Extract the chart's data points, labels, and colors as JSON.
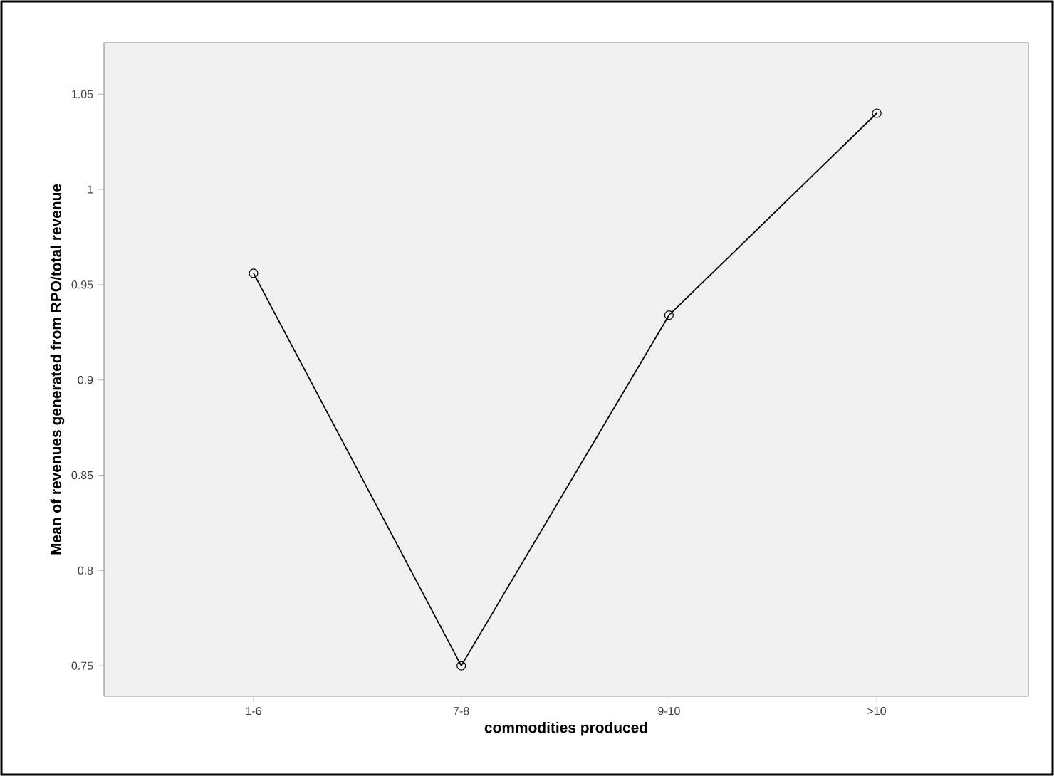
{
  "chart_data": {
    "type": "line",
    "xlabel": "commodities produced",
    "ylabel": "Mean of revenues generated from RPO/total revenue",
    "categories": [
      "1-6",
      "7-8",
      "9-10",
      ">10"
    ],
    "series": [
      {
        "color": "#000000",
        "values": [
          0.956,
          0.75,
          0.934,
          1.04
        ]
      }
    ],
    "ylim": [
      0.734,
      1.077
    ],
    "yticks": [
      0.75,
      0.8,
      0.85,
      0.9,
      0.95,
      1,
      1.05
    ],
    "marker": "circle",
    "line_style": "solid",
    "grid": false
  }
}
